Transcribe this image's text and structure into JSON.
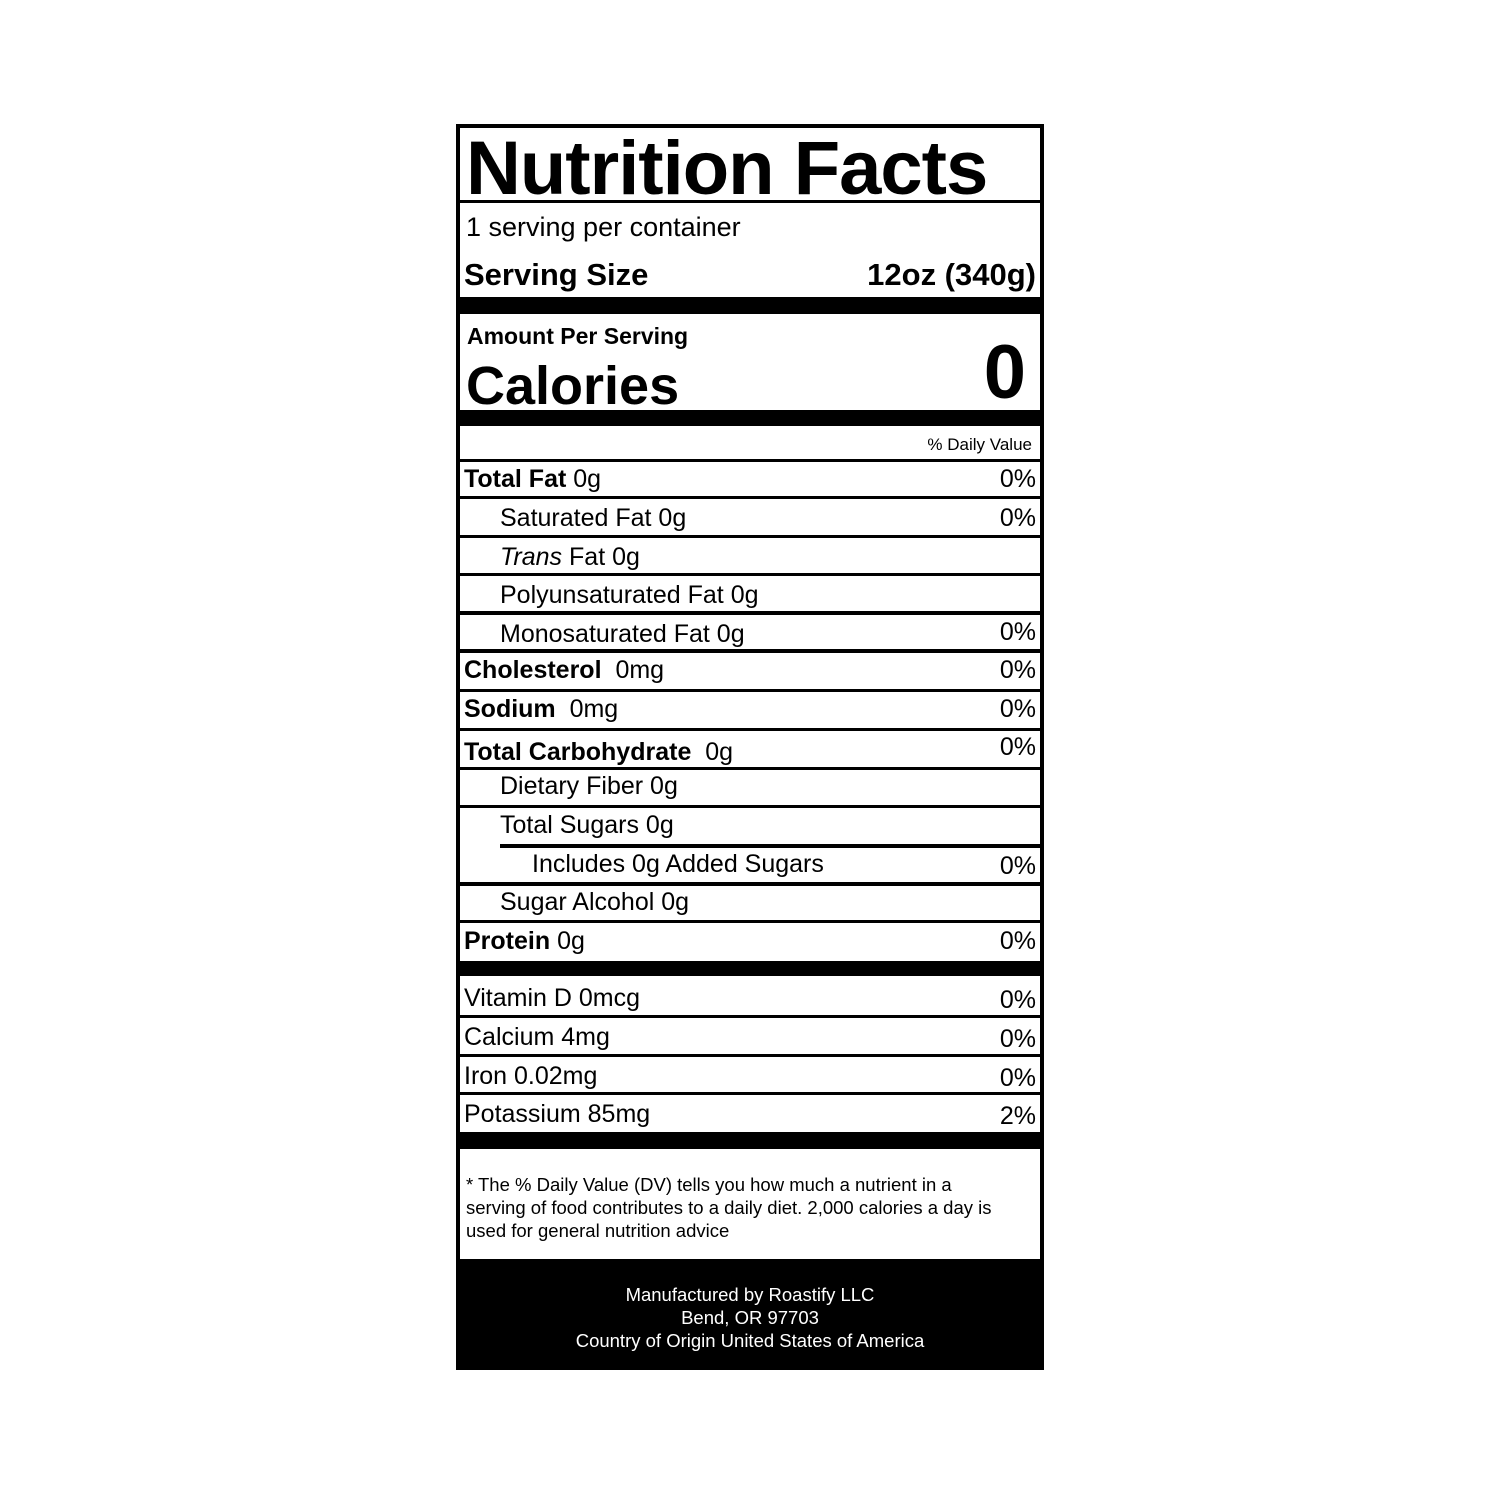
{
  "title": "Nutrition Facts",
  "servings_per_container": "1 serving per container",
  "serving_size": {
    "label": "Serving Size",
    "value": "12oz (340g)"
  },
  "amount_per_serving": "Amount Per Serving",
  "calories": {
    "label": "Calories",
    "value": "0"
  },
  "daily_value_header": "% Daily Value",
  "nutrients": [
    {
      "label": "Total Fat",
      "amount": "0g",
      "dv": "0%"
    },
    {
      "label": "Saturated Fat 0g",
      "dv": "0%"
    },
    {
      "label_italic": "Trans",
      "label": "Fat 0g"
    },
    {
      "label": "Polyunsaturated Fat 0g"
    },
    {
      "label": "Monosaturated Fat 0g",
      "dv": "0%"
    },
    {
      "label": "Cholesterol",
      "amount": "0mg",
      "dv": "0%"
    },
    {
      "label": "Sodium",
      "amount": "0mg",
      "dv": "0%"
    },
    {
      "label": "Total Carbohydrate",
      "amount": "0g",
      "dv": "0%"
    },
    {
      "label": "Dietary Fiber 0g"
    },
    {
      "label": "Total Sugars 0g"
    },
    {
      "label": "Includes 0g Added Sugars",
      "dv": "0%"
    },
    {
      "label": "Sugar Alcohol 0g"
    },
    {
      "label": "Protein",
      "amount": "0g",
      "dv": "0%"
    }
  ],
  "vitamins": [
    {
      "label": "Vitamin D 0mcg",
      "dv": "0%"
    },
    {
      "label": "Calcium 4mg",
      "dv": "0%"
    },
    {
      "label": "Iron 0.02mg",
      "dv": "0%"
    },
    {
      "label": "Potassium 85mg",
      "dv": "2%"
    }
  ],
  "footnote": "* The % Daily Value (DV) tells you how much a nutrient in a serving of food contributes to a daily diet. 2,000 calories a day is used for general nutrition advice",
  "footer": {
    "line1": "Manufactured by Roastify LLC",
    "line2": "Bend, OR 97703",
    "line3": "Country of Origin United States of America"
  }
}
